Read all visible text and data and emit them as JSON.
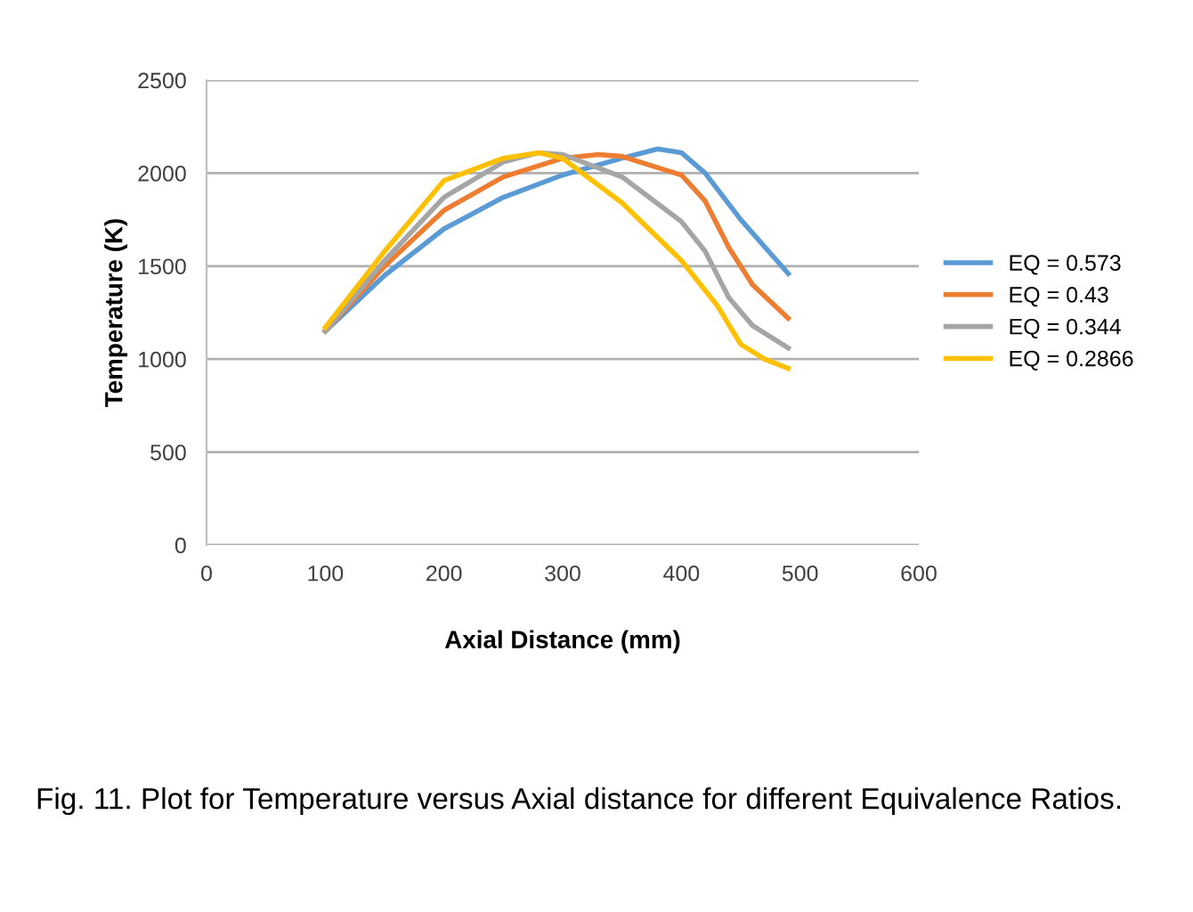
{
  "chart_data": {
    "type": "line",
    "xlabel": "Axial Distance (mm)",
    "ylabel": "Temperature (K)",
    "xlim": [
      0,
      600
    ],
    "xticks": [
      0,
      100,
      200,
      300,
      400,
      500,
      600
    ],
    "ylim": [
      0,
      2500
    ],
    "yticks": [
      0,
      500,
      1000,
      1500,
      2000,
      2500
    ],
    "grid": "y",
    "legend": "right",
    "marker": "none",
    "line_style": "solid",
    "series": [
      {
        "name": "EQ = 0.573",
        "color": "#5b9bd5",
        "x": [
          100,
          150,
          200,
          250,
          300,
          350,
          380,
          400,
          420,
          450,
          490
        ],
        "values": [
          1150,
          1450,
          1700,
          1870,
          1990,
          2080,
          2130,
          2110,
          2000,
          1750,
          1460
        ]
      },
      {
        "name": "EQ = 0.43",
        "color": "#ed7d31",
        "x": [
          100,
          150,
          200,
          250,
          300,
          330,
          350,
          400,
          420,
          440,
          460,
          490
        ],
        "values": [
          1150,
          1500,
          1800,
          1980,
          2080,
          2100,
          2090,
          1990,
          1850,
          1600,
          1400,
          1220
        ]
      },
      {
        "name": "EQ = 0.344",
        "color": "#a5a5a5",
        "x": [
          100,
          150,
          200,
          250,
          280,
          300,
          350,
          400,
          420,
          440,
          460,
          490
        ],
        "values": [
          1150,
          1530,
          1870,
          2060,
          2110,
          2100,
          1980,
          1740,
          1580,
          1330,
          1180,
          1060
        ]
      },
      {
        "name": "EQ = 0.2866",
        "color": "#ffc000",
        "x": [
          100,
          150,
          200,
          250,
          280,
          300,
          350,
          400,
          430,
          450,
          470,
          490
        ],
        "values": [
          1170,
          1580,
          1960,
          2080,
          2110,
          2080,
          1840,
          1530,
          1290,
          1080,
          1000,
          950
        ]
      }
    ],
    "annotations": [
      "Fig. 11. Plot for Temperature versus Axial distance for different Equivalence Ratios."
    ]
  }
}
